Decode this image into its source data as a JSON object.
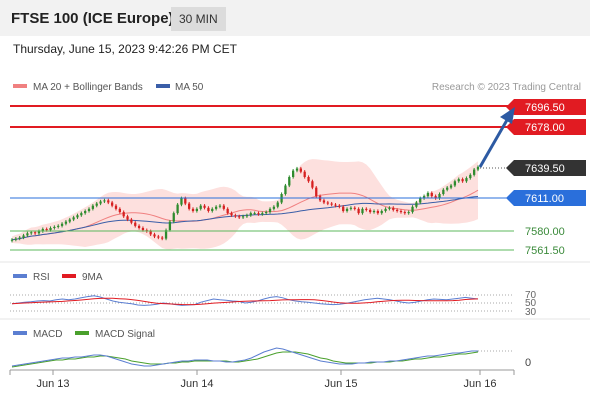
{
  "header": {
    "instrument": "FTSE 100 (ICE Europe)",
    "interval": "30 MIN"
  },
  "datetime": "Thursday, June 15, 2023 9:42:26 PM CET",
  "legend": {
    "ma20": "MA 20 + Bollinger Bands",
    "ma50": "MA 50",
    "credit": "Research © 2023 Trading Central",
    "rsi": "RSI",
    "rsi_ma": "9MA",
    "macd": "MACD",
    "macd_signal": "MACD Signal"
  },
  "colors": {
    "resistance": "#e11b22",
    "support": "#2a6fdb",
    "support_green": "#5cb85c",
    "ma20": "#f08080",
    "ma50": "#3a5ea8",
    "band_fill": "#fde0de",
    "candle_up": "#2e8b2e",
    "candle_down": "#d62020",
    "rsi": "#5b7ed1",
    "rsi_ma": "#e11b22",
    "macd": "#5b7ed1",
    "macd_signal": "#4aa02c",
    "arrow": "#2d5aa3",
    "current": "#333333"
  },
  "chart_data": {
    "type": "candlestick",
    "x_labels": [
      "Jun 13",
      "Jun 14",
      "Jun 15",
      "Jun 16"
    ],
    "current_price": "7639.50",
    "levels": [
      {
        "value": "7696.50",
        "kind": "resistance"
      },
      {
        "value": "7678.00",
        "kind": "resistance"
      },
      {
        "value": "7611.00",
        "kind": "support"
      },
      {
        "value": "7580.00",
        "kind": "support-weak"
      },
      {
        "value": "7561.50",
        "kind": "support-weak"
      }
    ],
    "y_range": [
      7550,
      7710
    ],
    "forecast": {
      "direction": "up",
      "from": 7639.5,
      "to": 7690
    },
    "close": [
      7571,
      7572,
      7573,
      7575,
      7577,
      7578,
      7577,
      7579,
      7581,
      7580,
      7582,
      7583,
      7584,
      7586,
      7588,
      7590,
      7592,
      7594,
      7596,
      7598,
      7600,
      7603,
      7605,
      7607,
      7608,
      7606,
      7603,
      7600,
      7597,
      7593,
      7590,
      7587,
      7584,
      7582,
      7580,
      7579,
      7576,
      7574,
      7573,
      7572,
      7580,
      7588,
      7596,
      7604,
      7610,
      7605,
      7600,
      7598,
      7600,
      7603,
      7601,
      7598,
      7600,
      7602,
      7603,
      7600,
      7596,
      7594,
      7593,
      7592,
      7593,
      7594,
      7596,
      7596,
      7595,
      7596,
      7597,
      7600,
      7602,
      7606,
      7614,
      7622,
      7630,
      7636,
      7638,
      7635,
      7630,
      7626,
      7620,
      7612,
      7608,
      7606,
      7605,
      7604,
      7603,
      7602,
      7598,
      7600,
      7601,
      7600,
      7596,
      7600,
      7599,
      7597,
      7598,
      7596,
      7598,
      7600,
      7601,
      7599,
      7598,
      7597,
      7596,
      7597,
      7602,
      7606,
      7610,
      7612,
      7615,
      7612,
      7610,
      7614,
      7618,
      7620,
      7622,
      7626,
      7628,
      7626,
      7629,
      7632,
      7637,
      7639.5
    ],
    "rsi": {
      "levels": [
        "70",
        "50",
        "30"
      ],
      "values": [
        48,
        50,
        52,
        53,
        55,
        56,
        55,
        58,
        60,
        58,
        60,
        63,
        66,
        68,
        65,
        60,
        55,
        52,
        50,
        48,
        45,
        44,
        45,
        47,
        50,
        48,
        46,
        44,
        45,
        46,
        52,
        56,
        60,
        58,
        57,
        55,
        54,
        50,
        52,
        55,
        60,
        64,
        66,
        63,
        58,
        55,
        53,
        52,
        50,
        48,
        47,
        46,
        47,
        49,
        52,
        55,
        58,
        60,
        62,
        60,
        58,
        55,
        52,
        50,
        52,
        55,
        58,
        60,
        59,
        58,
        60,
        62,
        64,
        62,
        60
      ]
    },
    "macd": {
      "zero_label": "0",
      "macd": [
        -4,
        -3,
        -2,
        -1,
        0,
        1,
        2,
        3,
        4,
        4,
        5,
        5,
        6,
        7,
        7,
        6,
        4,
        2,
        0,
        -2,
        -3,
        -4,
        -4,
        -3,
        -2,
        -1,
        0,
        1,
        1,
        2,
        2,
        2,
        1,
        1,
        0,
        0,
        1,
        2,
        4,
        7,
        10,
        12,
        14,
        13,
        11,
        9,
        7,
        5,
        3,
        1,
        0,
        -1,
        -2,
        -2,
        -2,
        -1,
        -1,
        0,
        0,
        0,
        1,
        1,
        2,
        3,
        4,
        5,
        6,
        6,
        7,
        8,
        9,
        9,
        10,
        11,
        11
      ],
      "signal": [
        -5,
        -4,
        -3,
        -2,
        -1,
        0,
        1,
        2,
        2,
        3,
        3,
        4,
        5,
        5,
        6,
        6,
        5,
        4,
        3,
        1,
        0,
        -1,
        -2,
        -2,
        -2,
        -1,
        -1,
        0,
        0,
        1,
        1,
        1,
        1,
        1,
        1,
        0,
        0,
        1,
        2,
        3,
        5,
        7,
        9,
        10,
        10,
        10,
        9,
        8,
        6,
        4,
        3,
        1,
        0,
        -1,
        -1,
        -1,
        -1,
        -1,
        0,
        0,
        0,
        1,
        1,
        2,
        3,
        3,
        4,
        5,
        5,
        6,
        7,
        8,
        8,
        9,
        10
      ]
    }
  }
}
